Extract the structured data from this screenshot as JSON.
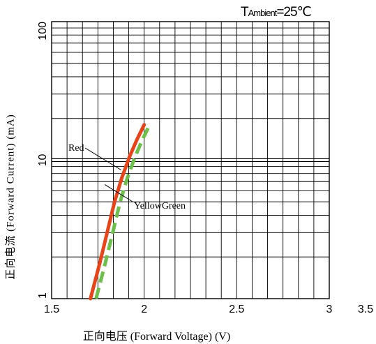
{
  "chart_data": {
    "type": "line",
    "xlabel": "正向电压 (Forward Voltage) (V)",
    "ylabel": "正向电流 (Forward Current) (mA)",
    "annotation": {
      "prefix": "T",
      "sub": "Ambient",
      "suffix": "=25℃"
    },
    "x_scale": "linear",
    "y_scale": "log",
    "xlim": [
      1.5,
      3.0
    ],
    "ylim": [
      1,
      100
    ],
    "x_ticks": [
      {
        "value": 1.5,
        "label": "1.5"
      },
      {
        "value": 2.0,
        "label": "2"
      },
      {
        "value": 2.5,
        "label": "2.5"
      },
      {
        "value": 3.0,
        "label": "3"
      },
      {
        "value": 3.5,
        "label": "3.5"
      }
    ],
    "y_ticks": [
      {
        "value": 1,
        "label": "1"
      },
      {
        "value": 10,
        "label": "10"
      },
      {
        "value": 100,
        "label": "100"
      }
    ],
    "grid": true,
    "series": [
      {
        "name": "Red",
        "color": "#e8441a",
        "style": "solid",
        "x": [
          1.71,
          1.76,
          1.8,
          1.84,
          1.88,
          1.92,
          1.96,
          2.0
        ],
        "y": [
          1.0,
          1.8,
          3.0,
          5.0,
          7.5,
          10.5,
          14.0,
          18.0
        ]
      },
      {
        "name": "YellowGreen",
        "color": "#6cc04a",
        "style": "dashed",
        "x": [
          1.74,
          1.79,
          1.83,
          1.87,
          1.91,
          1.95,
          1.99,
          2.03
        ],
        "y": [
          1.0,
          1.8,
          3.0,
          5.0,
          7.5,
          10.5,
          14.0,
          18.0
        ]
      }
    ],
    "series_labels": [
      {
        "text": "Red",
        "series": 0,
        "at_x": 1.875,
        "at_y": 8.5
      },
      {
        "text": "YellowGreen",
        "series": 1,
        "at_x": 1.9,
        "at_y": 5.8
      }
    ]
  }
}
